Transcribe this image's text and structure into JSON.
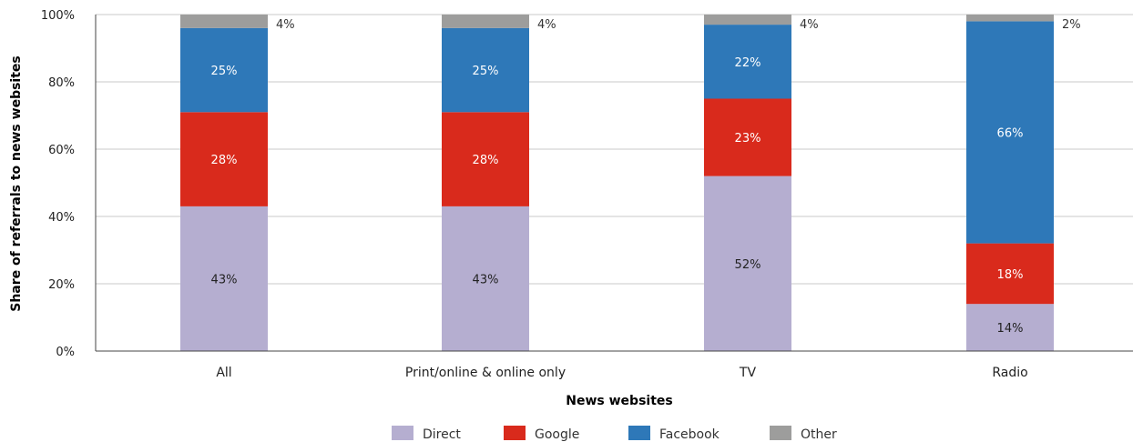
{
  "chart_data": {
    "type": "bar",
    "stacked": true,
    "categories": [
      "All",
      "Print/online & online only",
      "TV",
      "Radio"
    ],
    "series": [
      {
        "name": "Direct",
        "color": "#b5aed0",
        "label_color": "#222222",
        "values": [
          43,
          43,
          52,
          14
        ],
        "labels": [
          "43%",
          "43%",
          "52%",
          "14%"
        ]
      },
      {
        "name": "Google",
        "color": "#d92a1c",
        "label_color": "#ffffff",
        "values": [
          28,
          28,
          23,
          18
        ],
        "labels": [
          "28%",
          "28%",
          "23%",
          "18%"
        ]
      },
      {
        "name": "Facebook",
        "color": "#2e78b8",
        "label_color": "#ffffff",
        "values": [
          25,
          25,
          22,
          66
        ],
        "labels": [
          "25%",
          "25%",
          "22%",
          "66%"
        ]
      },
      {
        "name": "Other",
        "color": "#9d9d9c",
        "label_color": "#333333",
        "values": [
          4,
          4,
          4,
          2
        ],
        "labels": [
          "4%",
          "4%",
          "4%",
          "2%"
        ]
      }
    ],
    "xlabel": "News websites",
    "ylabel": "Share of referrals to news websites",
    "ylim": [
      0,
      100
    ],
    "yticks": [
      0,
      20,
      40,
      60,
      80,
      100
    ],
    "ytick_labels": [
      "0%",
      "20%",
      "40%",
      "60%",
      "80%",
      "100%"
    ],
    "grid": true,
    "legend_position": "bottom-center"
  }
}
